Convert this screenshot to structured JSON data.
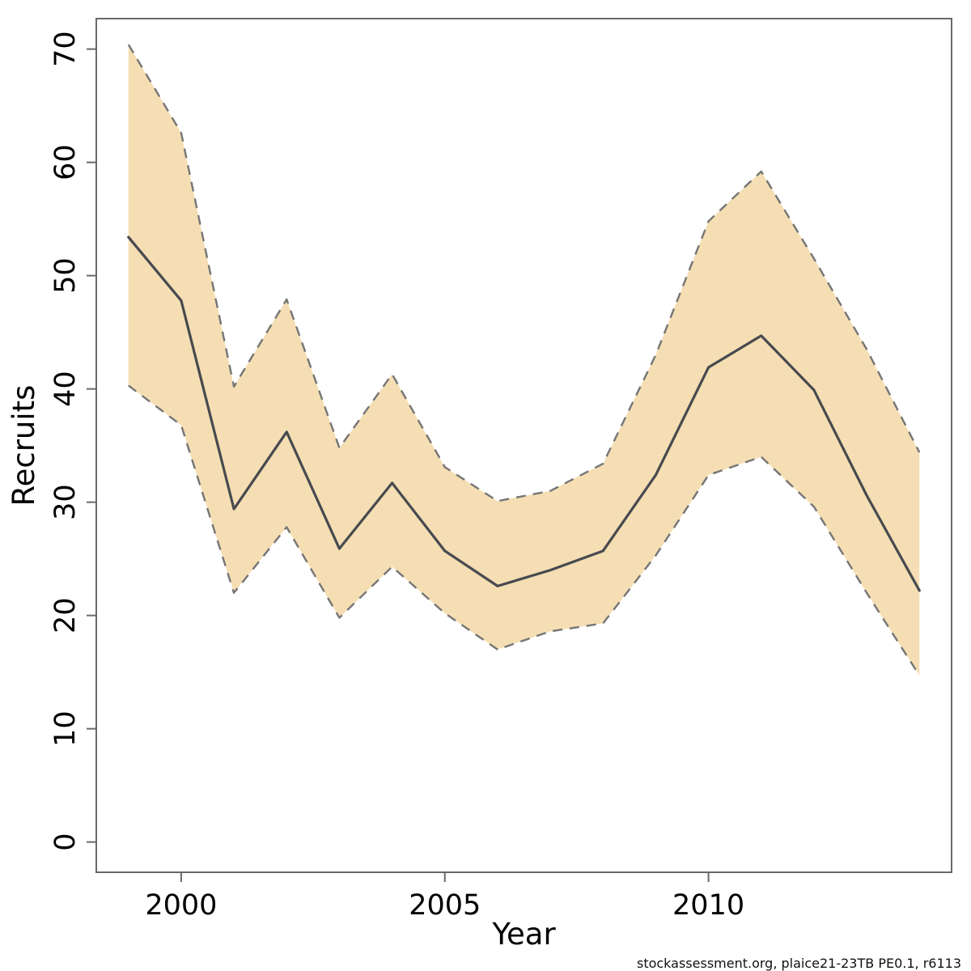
{
  "footer": "stockassessment.org, plaice21-23TB  PE0.1, r6113",
  "chart_data": {
    "type": "line",
    "title": "",
    "xlabel": "Year",
    "ylabel": "Recruits",
    "grid": false,
    "legend": "none",
    "x": [
      1999,
      2000,
      2001,
      2002,
      2003,
      2004,
      2005,
      2006,
      2007,
      2008,
      2009,
      2010,
      2011,
      2012,
      2013,
      2014
    ],
    "series": [
      {
        "name": "median",
        "style": "solid",
        "values": [
          53.4,
          47.8,
          29.4,
          36.2,
          25.9,
          31.7,
          25.7,
          22.6,
          24.0,
          25.7,
          32.4,
          41.9,
          44.7,
          39.9,
          30.6,
          22.2
        ]
      },
      {
        "name": "upper_ci",
        "style": "dashed",
        "values": [
          70.4,
          62.6,
          40.2,
          47.9,
          34.8,
          41.3,
          33.1,
          30.1,
          31.0,
          33.4,
          43.0,
          54.8,
          59.2,
          51.5,
          43.5,
          34.4
        ]
      },
      {
        "name": "lower_ci",
        "style": "dashed",
        "values": [
          40.3,
          36.8,
          22.0,
          27.8,
          19.8,
          24.3,
          20.2,
          17.0,
          18.6,
          19.3,
          25.3,
          32.4,
          34.0,
          29.6,
          22.0,
          14.7
        ]
      }
    ],
    "band_between": [
      "upper_ci",
      "lower_ci"
    ],
    "x_ticks": [
      2000,
      2005,
      2010
    ],
    "y_ticks": [
      0,
      10,
      20,
      30,
      40,
      50,
      60,
      70
    ],
    "xlim": [
      1998.39,
      2014.61
    ],
    "ylim": [
      -2.67,
      72.69
    ],
    "colors": {
      "band": "#f5deb3",
      "median_line": "#474a4f",
      "ci_line": "#757575",
      "axis": "#696969",
      "tick_text": "#000000"
    }
  }
}
